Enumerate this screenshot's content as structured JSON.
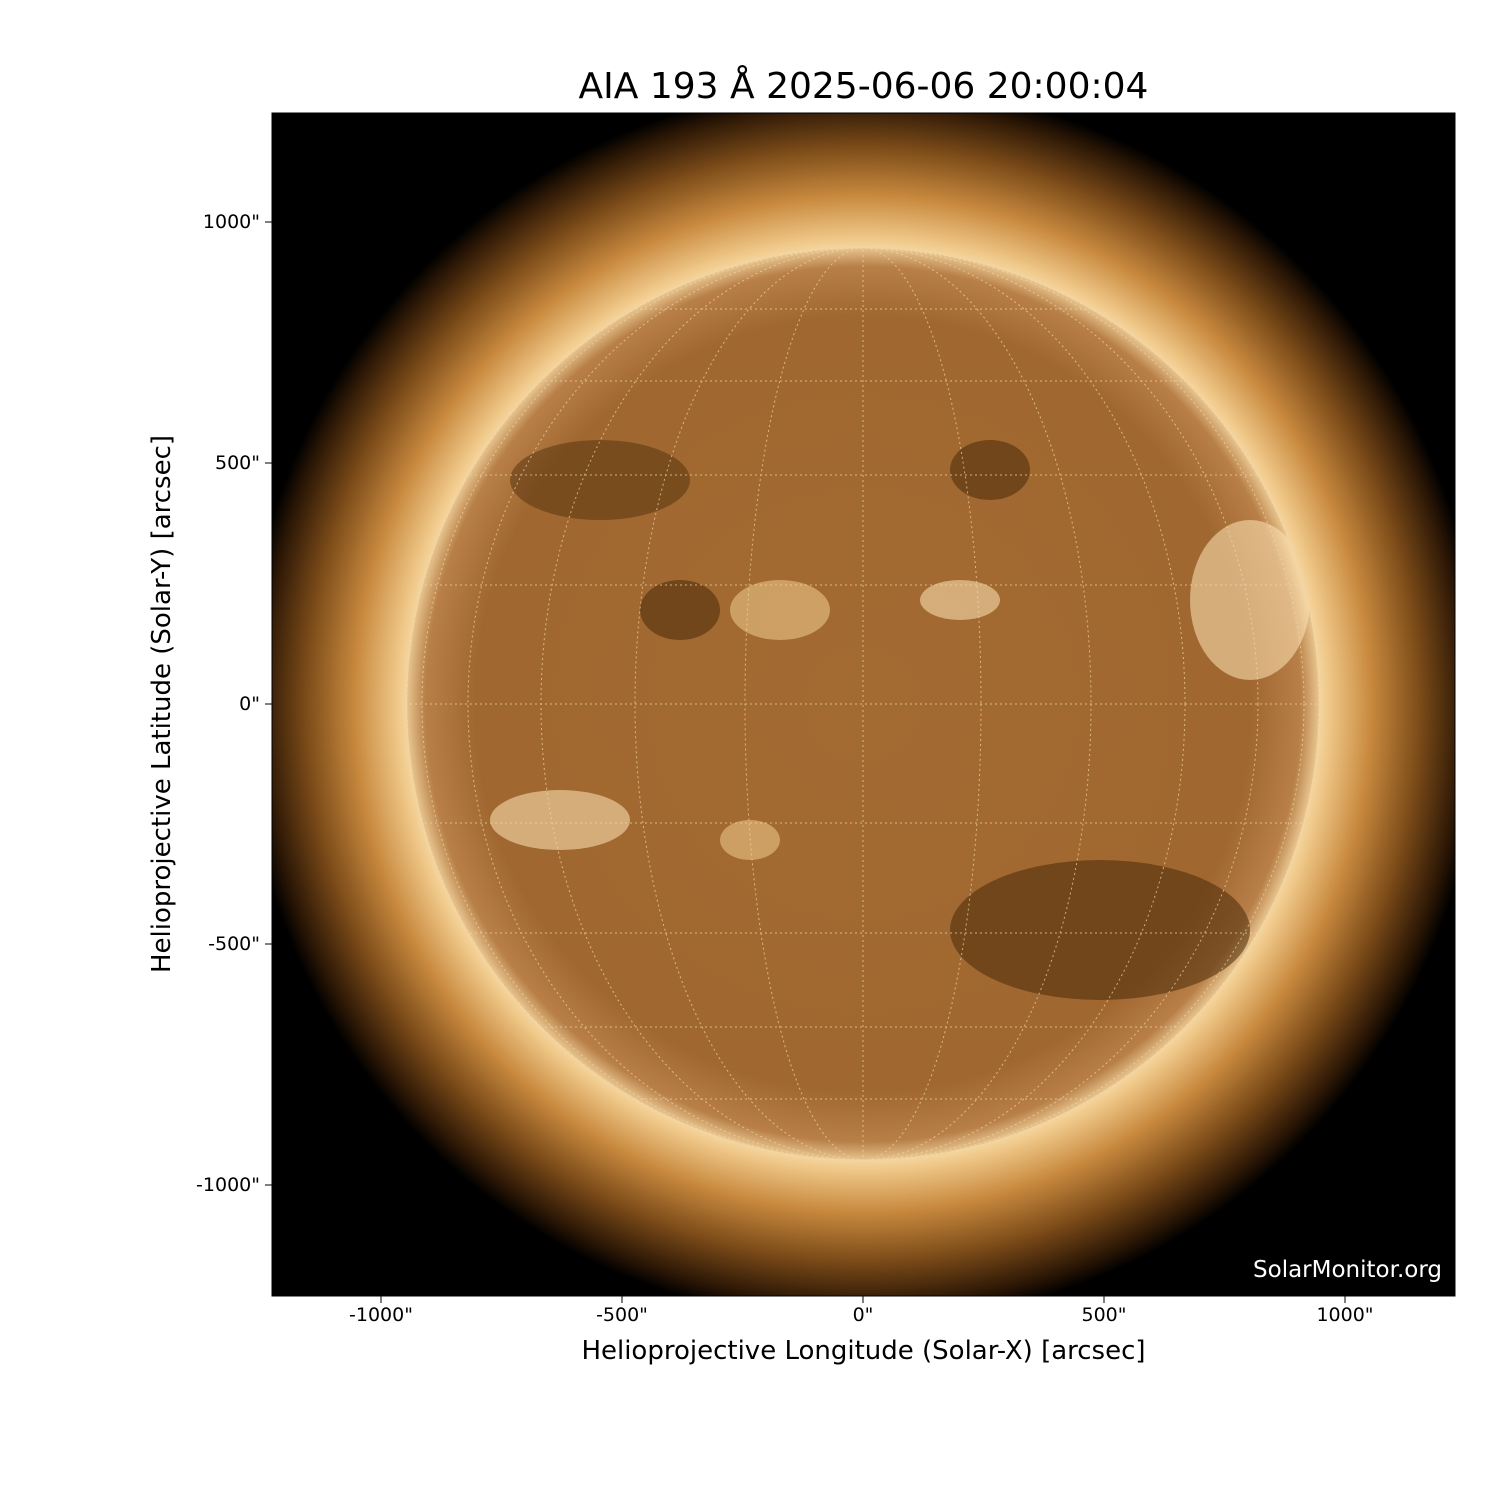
{
  "title": "AIA 193 Å 2025-06-06 20:00:04",
  "xaxis": {
    "label": "Helioprojective Longitude (Solar-X) [arcsec]",
    "ticks": [
      "-1000\"",
      "-500\"",
      "0\"",
      "500\"",
      "1000\""
    ]
  },
  "yaxis": {
    "label": "Helioprojective Latitude (Solar-Y) [arcsec]",
    "ticks": [
      "1000\"",
      "500\"",
      "0\"",
      "-500\"",
      "-1000\""
    ]
  },
  "credit": "SolarMonitor.org",
  "colors": {
    "background": "#000000",
    "disk": "#a06a30",
    "corona": "#f5d6a0"
  }
}
